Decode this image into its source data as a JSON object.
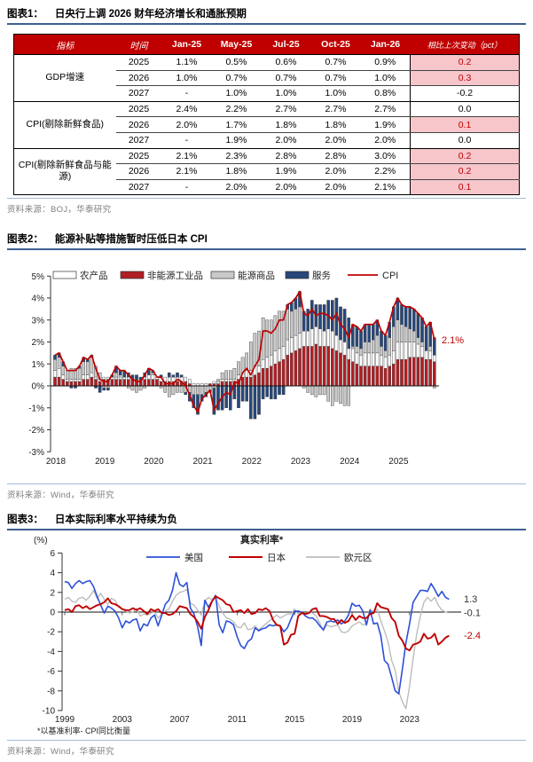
{
  "fig1": {
    "label": "图表1：",
    "title": "日央行上调 2026 财年经济增长和通胀预期",
    "source": "资料来源：BOJ，华泰研究",
    "table": {
      "headers": [
        "指标",
        "时间",
        "Jan-25",
        "May-25",
        "Jul-25",
        "Oct-25",
        "Jan-26",
        "相比上次变动（pct）"
      ],
      "groups": [
        {
          "name": "GDP增速",
          "rows": [
            {
              "year": "2025",
              "values": [
                "1.1%",
                "0.5%",
                "0.6%",
                "0.7%",
                "0.9%"
              ],
              "change": "0.2",
              "highlight": true
            },
            {
              "year": "2026",
              "values": [
                "1.0%",
                "0.7%",
                "0.7%",
                "0.7%",
                "1.0%"
              ],
              "change": "0.3",
              "highlight": true
            },
            {
              "year": "2027",
              "values": [
                "-",
                "1.0%",
                "1.0%",
                "1.0%",
                "0.8%"
              ],
              "change": "-0.2",
              "highlight": false
            }
          ]
        },
        {
          "name": "CPI(剔除新鲜食品)",
          "rows": [
            {
              "year": "2025",
              "values": [
                "2.4%",
                "2.2%",
                "2.7%",
                "2.7%",
                "2.7%"
              ],
              "change": "0.0",
              "highlight": false
            },
            {
              "year": "2026",
              "values": [
                "2.0%",
                "1.7%",
                "1.8%",
                "1.8%",
                "1.9%"
              ],
              "change": "0.1",
              "highlight": true
            },
            {
              "year": "2027",
              "values": [
                "-",
                "1.9%",
                "2.0%",
                "2.0%",
                "2.0%"
              ],
              "change": "0.0",
              "highlight": false
            }
          ]
        },
        {
          "name": "CPI(剔除新鲜食品与能源)",
          "rows": [
            {
              "year": "2025",
              "values": [
                "2.1%",
                "2.3%",
                "2.8%",
                "2.8%",
                "3.0%"
              ],
              "change": "0.2",
              "highlight": true
            },
            {
              "year": "2026",
              "values": [
                "2.1%",
                "1.8%",
                "1.9%",
                "2.0%",
                "2.2%"
              ],
              "change": "0.2",
              "highlight": true
            },
            {
              "year": "2027",
              "values": [
                "-",
                "2.0%",
                "2.0%",
                "2.0%",
                "2.1%"
              ],
              "change": "0.1",
              "highlight": true
            }
          ]
        }
      ]
    }
  },
  "fig2": {
    "label": "图表2：",
    "title": "能源补贴等措施暂时压低日本 CPI",
    "source": "资料来源：Wind，华泰研究"
  },
  "fig3": {
    "label": "图表3：",
    "title": "日本实际利率水平持续为负",
    "source": "资料来源：Wind，华泰研究"
  },
  "colors": {
    "header_red": "#C00000",
    "pink_cell": "#F6C6CB",
    "rule_blue": "#3D5F91",
    "thin_rule_blue": "#A6B8D4",
    "source_gray": "#7F7F7F",
    "bar_red": "#B01E24",
    "bar_white": "#FFFFFF",
    "bar_gray": "#C9C9C9",
    "bar_navy": "#27477A",
    "cpi_line_red": "#C00000",
    "us_blue": "#2B50D8",
    "japan_red": "#C00000",
    "eurozone_gray": "#BDBDBD"
  },
  "chart_data": [
    {
      "figure": "fig2",
      "type": "bar",
      "stacked": true,
      "with_line": true,
      "title": "能源补贴等措施暂时压低日本 CPI",
      "x_start": "2018-01",
      "x_freq": "monthly",
      "xticks": [
        "2018",
        "2019",
        "2020",
        "2021",
        "2022",
        "2023",
        "2024",
        "2025"
      ],
      "ytick_labels": [
        "5%",
        "4%",
        "3%",
        "2%",
        "1%",
        "0%",
        "-1%",
        "-2%",
        "-3%"
      ],
      "ytick_values": [
        5,
        4,
        3,
        2,
        1,
        0,
        -1,
        -2,
        -3
      ],
      "ylim": [
        -3,
        5
      ],
      "legend_position": "top",
      "stack_order": [
        1,
        0,
        2,
        3
      ],
      "series": [
        {
          "name": "农产品",
          "color": "#FFFFFF",
          "values": [
            0.3,
            0.4,
            0.2,
            0.1,
            0.1,
            0.1,
            0.1,
            0.2,
            0.2,
            0.2,
            0.1,
            0.1,
            0.1,
            0.1,
            0.1,
            0.1,
            0.1,
            0.1,
            0.1,
            0.0,
            0.0,
            0.0,
            0.1,
            0.2,
            0.2,
            0.1,
            0.2,
            0.2,
            0.2,
            0.2,
            0.2,
            0.2,
            0.2,
            0.2,
            0.1,
            0.1,
            0.1,
            0.1,
            0.0,
            0.1,
            0.1,
            0.1,
            0.1,
            0.1,
            0.1,
            0.2,
            0.2,
            0.3,
            0.3,
            0.4,
            0.3,
            0.4,
            0.5,
            0.5,
            0.6,
            0.6,
            0.6,
            0.7,
            0.7,
            0.7,
            0.7,
            0.7,
            0.7,
            0.8,
            0.8,
            0.8,
            0.7,
            0.8,
            0.8,
            0.7,
            0.6,
            0.6,
            0.5,
            0.6,
            0.5,
            0.5,
            0.6,
            0.6,
            0.6,
            0.6,
            0.5,
            0.5,
            0.5,
            0.6,
            0.8,
            0.8,
            0.8,
            0.7,
            0.7,
            0.6,
            0.5,
            0.4,
            0.4,
            0.3
          ]
        },
        {
          "name": "非能源工业品",
          "color": "#B01E24",
          "values": [
            0.4,
            0.4,
            0.3,
            0.2,
            0.2,
            0.2,
            0.2,
            0.3,
            0.3,
            0.4,
            0.3,
            0.2,
            0.3,
            0.3,
            0.3,
            0.3,
            0.3,
            0.3,
            0.3,
            0.3,
            0.3,
            0.3,
            0.3,
            0.3,
            0.3,
            0.3,
            0.2,
            0.2,
            0.2,
            0.2,
            0.2,
            0.2,
            0.2,
            0.1,
            0.0,
            0.0,
            0.0,
            0.0,
            0.1,
            0.1,
            0.1,
            0.2,
            0.2,
            0.2,
            0.2,
            0.3,
            0.4,
            0.4,
            0.4,
            0.5,
            0.6,
            0.8,
            0.8,
            0.9,
            1.0,
            1.1,
            1.2,
            1.4,
            1.5,
            1.6,
            1.7,
            1.8,
            1.8,
            1.8,
            1.9,
            1.8,
            1.8,
            1.8,
            1.7,
            1.6,
            1.5,
            1.4,
            1.2,
            1.1,
            1.0,
            0.9,
            0.9,
            0.9,
            0.9,
            0.9,
            0.9,
            0.8,
            0.9,
            1.0,
            1.2,
            1.2,
            1.2,
            1.3,
            1.3,
            1.3,
            1.3,
            1.2,
            1.2,
            1.1
          ]
        },
        {
          "name": "能源商品",
          "color": "#C9C9C9",
          "values": [
            0.5,
            0.5,
            0.4,
            0.4,
            0.5,
            0.5,
            0.5,
            0.6,
            0.6,
            0.7,
            0.5,
            0.3,
            -0.1,
            -0.1,
            0.0,
            0.2,
            0.1,
            0.0,
            -0.1,
            -0.2,
            -0.3,
            -0.2,
            -0.1,
            0.0,
            0.1,
            0.0,
            -0.1,
            -0.3,
            -0.5,
            -0.4,
            -0.3,
            -0.3,
            -0.3,
            -0.3,
            -0.4,
            -0.4,
            -0.4,
            -0.3,
            -0.2,
            -0.1,
            0.1,
            0.3,
            0.4,
            0.4,
            0.5,
            0.6,
            0.7,
            0.8,
            1.3,
            1.5,
            1.6,
            1.9,
            1.7,
            1.6,
            1.6,
            1.7,
            1.6,
            1.4,
            1.2,
            1.2,
            1.2,
            -0.1,
            -0.3,
            -0.4,
            -0.5,
            -0.4,
            -0.4,
            -0.7,
            -0.9,
            -0.7,
            -0.8,
            -0.9,
            -0.9,
            0.1,
            0.3,
            0.3,
            0.5,
            0.5,
            0.6,
            0.8,
            0.4,
            0.3,
            0.8,
            1.1,
            1.0,
            0.8,
            0.7,
            0.6,
            0.5,
            0.3,
            0.2,
            0.0,
            0.2,
            -0.1
          ]
        },
        {
          "name": "服务",
          "color": "#27477A",
          "values": [
            0.2,
            0.2,
            0.2,
            0.0,
            -0.1,
            -0.1,
            0.1,
            0.2,
            0.1,
            0.1,
            -0.1,
            -0.3,
            -0.1,
            -0.1,
            0.1,
            0.3,
            0.2,
            0.3,
            0.2,
            0.2,
            0.2,
            0.1,
            0.2,
            0.3,
            0.1,
            0.0,
            0.1,
            0.0,
            0.2,
            0.1,
            0.2,
            0.1,
            -0.1,
            -0.4,
            -0.6,
            -0.9,
            -0.3,
            -0.2,
            -0.1,
            -1.2,
            -1.1,
            -1.1,
            -1.0,
            -1.1,
            -0.6,
            -1.0,
            -0.7,
            -0.7,
            -1.5,
            -1.5,
            -1.3,
            -0.6,
            -0.5,
            -0.6,
            -0.6,
            -0.4,
            -0.4,
            0.2,
            0.4,
            0.5,
            0.7,
            0.9,
            1.0,
            1.3,
            1.0,
            1.1,
            1.2,
            1.3,
            1.4,
            1.7,
            1.5,
            1.5,
            1.4,
            1.0,
            0.9,
            0.8,
            0.8,
            0.8,
            0.7,
            0.7,
            0.7,
            0.7,
            0.7,
            0.9,
            1.0,
            0.9,
            0.9,
            1.0,
            1.0,
            1.1,
            1.1,
            1.1,
            1.1,
            0.8
          ]
        }
      ],
      "line_series": {
        "name": "CPI",
        "color": "#C00000",
        "values": [
          1.4,
          1.5,
          1.1,
          0.7,
          0.7,
          0.7,
          0.9,
          1.3,
          1.2,
          1.4,
          0.8,
          0.3,
          0.2,
          0.2,
          0.5,
          0.9,
          0.7,
          0.7,
          0.5,
          0.3,
          0.2,
          0.2,
          0.5,
          0.8,
          0.7,
          0.4,
          0.4,
          0.1,
          0.1,
          0.1,
          0.3,
          0.2,
          0.0,
          -0.4,
          -0.9,
          -1.2,
          -0.6,
          -0.4,
          -0.2,
          -1.1,
          -0.8,
          -0.5,
          -0.3,
          -0.4,
          0.2,
          0.1,
          0.6,
          0.8,
          0.5,
          0.9,
          1.2,
          2.5,
          2.5,
          2.4,
          2.6,
          3.0,
          3.0,
          3.7,
          3.8,
          4.0,
          4.3,
          3.3,
          3.2,
          3.5,
          3.2,
          3.3,
          3.3,
          3.2,
          3.0,
          3.3,
          2.8,
          2.6,
          2.2,
          2.8,
          2.7,
          2.5,
          2.8,
          2.8,
          2.8,
          3.0,
          2.5,
          2.3,
          2.9,
          3.6,
          4.0,
          3.7,
          3.6,
          3.6,
          3.5,
          3.3,
          3.1,
          2.7,
          2.9,
          2.1
        ]
      },
      "annotation": {
        "text": "2.1%",
        "color": "#C00000"
      }
    },
    {
      "figure": "fig3",
      "type": "line",
      "title": "真实利率*",
      "ylabel": "(%)",
      "x_start": 1999,
      "x_freq": "quarterly",
      "xticks": [
        "1999",
        "2003",
        "2007",
        "2011",
        "2015",
        "2019",
        "2023"
      ],
      "ytick_values": [
        6,
        4,
        2,
        0,
        -2,
        -4,
        -6,
        -8,
        -10
      ],
      "ylim": [
        -10,
        6
      ],
      "legend_position": "top",
      "footnote": "*以基准利率- CPI同比衡量",
      "series": [
        {
          "name": "美国",
          "color": "#2B50D8",
          "end_label": "1.3",
          "end_label_color": "#333333",
          "values": [
            3.1,
            3.0,
            2.4,
            2.9,
            3.2,
            2.9,
            3.1,
            3.2,
            2.6,
            1.6,
            0.7,
            -0.1,
            0.6,
            0.4,
            0.1,
            -0.6,
            -1.6,
            -0.9,
            -1.1,
            -0.8,
            -0.7,
            -1.9,
            -1.2,
            -1.4,
            -0.6,
            -0.3,
            -1.4,
            -0.3,
            0.8,
            1.2,
            2.2,
            4.0,
            2.8,
            2.6,
            3.0,
            0.4,
            -0.2,
            -1.5,
            -3.4,
            1.2,
            0.5,
            1.1,
            1.7,
            -1.3,
            -2.1,
            -0.9,
            -1.0,
            -1.3,
            -2.5,
            -3.4,
            -3.7,
            -3.0,
            -2.7,
            -1.6,
            -1.9,
            -1.7,
            -1.6,
            -1.3,
            -1.4,
            -1.3,
            -1.4,
            -2.0,
            -1.6,
            -0.7,
            0.1,
            0.1,
            0.0,
            -0.4,
            -0.6,
            -0.6,
            -0.9,
            -1.4,
            -1.8,
            -1.0,
            -0.9,
            -1.0,
            -0.8,
            -1.2,
            -0.9,
            -0.3,
            0.9,
            0.6,
            0.7,
            0.1,
            -1.3,
            0.2,
            -1.2,
            -1.1,
            -2.4,
            -4.9,
            -5.3,
            -6.6,
            -8.0,
            -8.3,
            -5.8,
            -3.1,
            -1.2,
            1.0,
            1.6,
            2.2,
            2.2,
            2.1,
            2.9,
            2.3,
            1.6,
            2.1,
            1.5,
            1.3
          ]
        },
        {
          "name": "日本",
          "color": "#C00000",
          "end_label": "-2.4",
          "end_label_color": "#C00000",
          "values": [
            0.2,
            0.3,
            0.0,
            0.6,
            0.7,
            0.4,
            0.6,
            0.3,
            0.5,
            0.7,
            0.8,
            1.0,
            1.4,
            0.9,
            0.8,
            0.6,
            0.3,
            0.2,
            0.2,
            0.4,
            0.2,
            0.4,
            0.1,
            -0.2,
            0.3,
            0.1,
            0.3,
            -0.1,
            -0.1,
            -0.3,
            -0.2,
            0.1,
            0.6,
            0.5,
            0.4,
            -0.2,
            -0.5,
            -1.0,
            -1.7,
            -0.5,
            0.2,
            1.1,
            1.6,
            1.4,
            1.2,
            0.8,
            0.7,
            0.0,
            0.1,
            0.2,
            -0.1,
            0.3,
            -0.2,
            -0.1,
            0.3,
            0.2,
            0.4,
            0.1,
            -0.8,
            -1.3,
            -1.4,
            -3.3,
            -3.1,
            -2.3,
            -2.2,
            -0.4,
            -0.1,
            -0.2,
            -0.1,
            0.3,
            0.4,
            -0.4,
            -0.4,
            -0.5,
            -0.7,
            -0.7,
            -1.2,
            -0.8,
            -1.1,
            -0.9,
            -0.3,
            -0.8,
            -0.4,
            -0.6,
            -0.6,
            -0.2,
            -0.1,
            0.9,
            0.5,
            0.4,
            0.3,
            -0.6,
            -1.0,
            -2.4,
            -2.9,
            -3.7,
            -3.9,
            -3.3,
            -3.2,
            -3.0,
            -2.2,
            -2.7,
            -2.6,
            -2.2,
            -3.3,
            -3.0,
            -2.6,
            -2.4
          ]
        },
        {
          "name": "欧元区",
          "color": "#BDBDBD",
          "end_label": "-0.1",
          "end_label_color": "#333333",
          "values": [
            1.3,
            1.5,
            1.1,
            1.0,
            1.4,
            1.5,
            1.2,
            1.6,
            2.2,
            1.4,
            1.9,
            1.3,
            0.8,
            1.4,
            1.2,
            0.5,
            0.3,
            0.1,
            -0.1,
            0.0,
            0.4,
            -0.4,
            -0.2,
            -0.3,
            -0.1,
            0.0,
            -0.6,
            -0.2,
            0.1,
            0.3,
            1.1,
            1.7,
            2.0,
            2.1,
            2.3,
            0.9,
            0.7,
            0.2,
            -0.3,
            1.1,
            1.5,
            1.3,
            1.4,
            0.6,
            -0.1,
            -0.6,
            -0.7,
            -1.0,
            -1.5,
            -1.6,
            -1.1,
            -1.8,
            -1.7,
            -1.4,
            -1.8,
            -1.5,
            -1.2,
            -0.9,
            -0.6,
            -0.3,
            -0.6,
            -0.4,
            -0.2,
            -0.2,
            0.3,
            -0.2,
            -0.1,
            -0.2,
            0.0,
            -0.1,
            -0.4,
            -1.1,
            -1.9,
            -1.3,
            -1.5,
            -1.4,
            -1.3,
            -2.0,
            -2.1,
            -1.9,
            -1.4,
            -1.2,
            -1.0,
            -1.3,
            -1.2,
            0.3,
            0.0,
            0.3,
            -0.9,
            -1.9,
            -3.0,
            -4.9,
            -5.9,
            -8.1,
            -9.1,
            -9.8,
            -7.5,
            -4.7,
            -2.2,
            -0.4,
            1.0,
            1.5,
            1.1,
            1.5,
            0.7,
            0.2,
            0.0,
            -0.1
          ]
        }
      ]
    }
  ]
}
